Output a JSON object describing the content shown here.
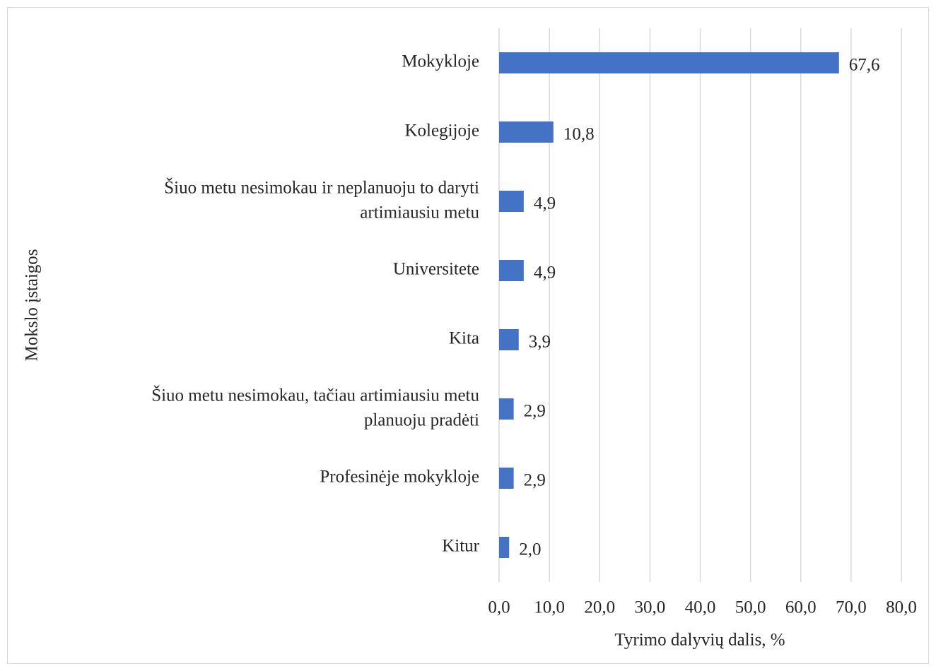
{
  "chart_data": {
    "type": "bar",
    "orientation": "horizontal",
    "categories": [
      "Mokykloje",
      "Kolegijoje",
      "Šiuo metu nesimokau ir neplanuoju to daryti\nartimiausiu metu",
      "Universitete",
      "Kita",
      "Šiuo metu nesimokau, tačiau artimiausiu metu\nplanuoju pradėti",
      "Profesinėje mokykloje",
      "Kitur"
    ],
    "values": [
      67.6,
      10.8,
      4.9,
      4.9,
      3.9,
      2.9,
      2.9,
      2.0
    ],
    "value_labels": [
      "67,6",
      "10,8",
      "4,9",
      "4,9",
      "3,9",
      "2,9",
      "2,9",
      "2,0"
    ],
    "color": "#4472c4",
    "xlim": [
      0,
      80
    ],
    "xticks": [
      {
        "value": 0,
        "label": "0,0"
      },
      {
        "value": 10,
        "label": "10,0"
      },
      {
        "value": 20,
        "label": "20,0"
      },
      {
        "value": 30,
        "label": "30,0"
      },
      {
        "value": 40,
        "label": "40,0"
      },
      {
        "value": 50,
        "label": "50,0"
      },
      {
        "value": 60,
        "label": "60,0"
      },
      {
        "value": 70,
        "label": "70,0"
      },
      {
        "value": 80,
        "label": "80,0"
      }
    ],
    "xlabel": "Tyrimo dalyvių dalis, %",
    "ylabel": "Mokslo įstaigos",
    "grid": true
  }
}
